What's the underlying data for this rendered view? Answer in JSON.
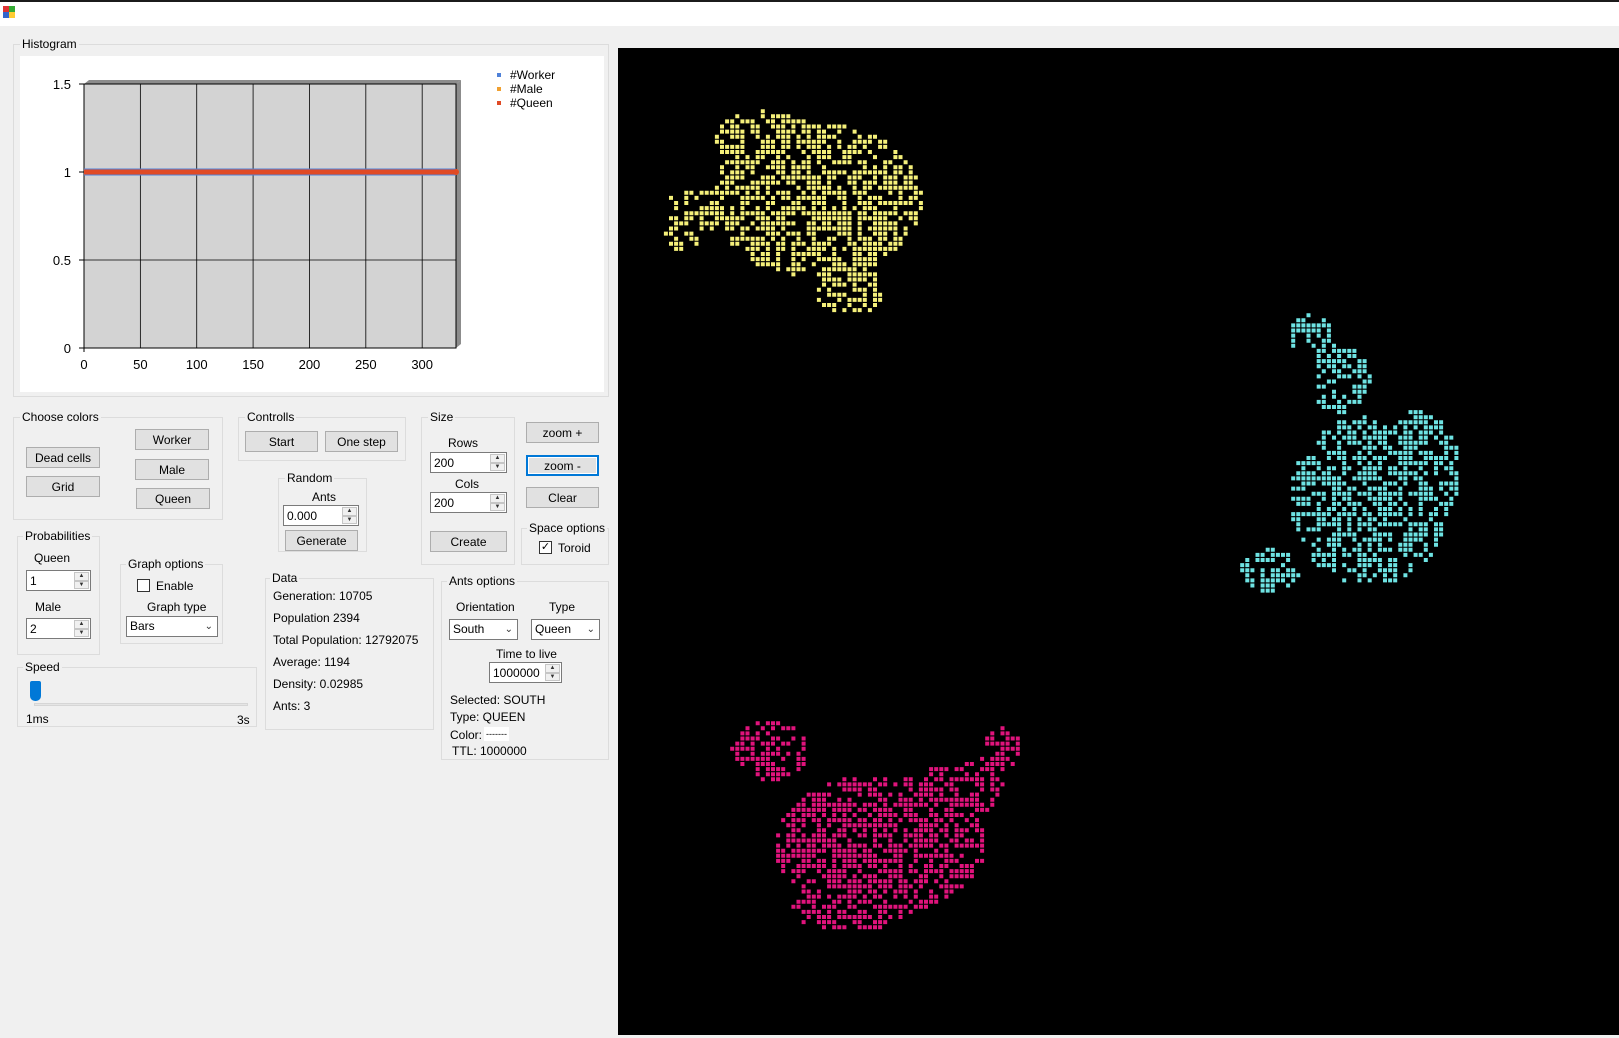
{
  "histogram": {
    "title": "Histogram",
    "legend": [
      {
        "label": "#Worker",
        "color": "#4f81d8"
      },
      {
        "label": "#Male",
        "color": "#f0a030"
      },
      {
        "label": "#Queen",
        "color": "#e04a25"
      }
    ]
  },
  "chart_data": {
    "type": "line",
    "title": "",
    "xlabel": "",
    "ylabel": "",
    "xlim": [
      0,
      330
    ],
    "ylim": [
      0,
      1.5
    ],
    "x_ticks": [
      "0",
      "50",
      "100",
      "150",
      "200",
      "250",
      "300"
    ],
    "y_ticks": [
      "0",
      "0.5",
      "1",
      "1.5"
    ],
    "series": [
      {
        "name": "#Worker",
        "color": "#4f81d8",
        "x": [
          0,
          330
        ],
        "y": [
          1,
          1
        ]
      },
      {
        "name": "#Male",
        "color": "#f0a030",
        "x": [
          0,
          330
        ],
        "y": [
          1,
          1
        ]
      },
      {
        "name": "#Queen",
        "color": "#e04a25",
        "x": [
          0,
          330
        ],
        "y": [
          1,
          1
        ]
      }
    ],
    "grid": true,
    "legend_position": "top-right",
    "plot_background": "#d3d3d3"
  },
  "colors": {
    "title": "Choose colors",
    "dead_cells": "Dead cells",
    "grid": "Grid",
    "worker": "Worker",
    "male": "Male",
    "queen": "Queen"
  },
  "controls": {
    "title": "Controlls",
    "start": "Start",
    "one_step": "One step"
  },
  "random": {
    "title": "Random",
    "ants_label": "Ants",
    "ants_value": "0.000",
    "generate": "Generate"
  },
  "size": {
    "title": "Size",
    "rows_label": "Rows",
    "rows_value": "200",
    "cols_label": "Cols",
    "cols_value": "200",
    "create": "Create"
  },
  "zoom": {
    "zoom_in": "zoom +",
    "zoom_out": "zoom -",
    "clear": "Clear"
  },
  "space_options": {
    "title": "Space options",
    "toroid_label": "Toroid",
    "toroid_checked": true
  },
  "probabilities": {
    "title": "Probabilities",
    "queen_label": "Queen",
    "queen_value": "1",
    "male_label": "Male",
    "male_value": "2"
  },
  "graph_options": {
    "title": "Graph options",
    "enable_label": "Enable",
    "enable_checked": false,
    "type_label": "Graph type",
    "type_value": "Bars"
  },
  "speed": {
    "title": "Speed",
    "min_label": "1ms",
    "max_label": "3s",
    "level": 0.0
  },
  "data_panel": {
    "title": "Data",
    "generation": "Generation: 10705",
    "population": "Population 2394",
    "total_population": "Total Population: 12792075",
    "average": "Average: 1194",
    "density": "Density: 0.02985",
    "ants": "Ants: 3"
  },
  "ants_options": {
    "title": "Ants options",
    "orientation_label": "Orientation",
    "orientation_value": "South",
    "type_label": "Type",
    "type_value": "Queen",
    "ttl_label": "Time to live",
    "ttl_value": "1000000",
    "selected": "Selected: SOUTH",
    "type_info": "Type: QUEEN",
    "color_label": "Color:",
    "color_swatch": "-------",
    "ttl_info": "TTL: 1000000"
  },
  "simulation": {
    "background": "#000000",
    "colonies": [
      {
        "name": "yellow-colony",
        "color": "#f5f07a"
      },
      {
        "name": "cyan-colony",
        "color": "#6ee3e3"
      },
      {
        "name": "magenta-colony",
        "color": "#e0137c"
      }
    ]
  }
}
